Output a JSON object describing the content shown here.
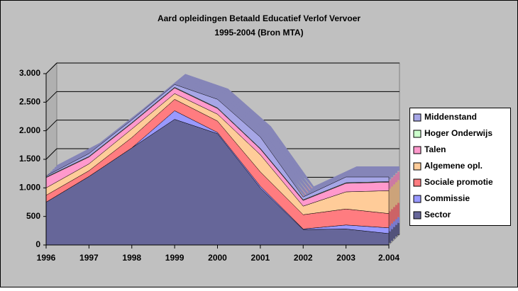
{
  "chart_data": {
    "type": "area3d",
    "title": "Aard opleidingen Betaald Educatief Verlof Vervoer",
    "subtitle": "1995-2004 (Bron MTA)",
    "categories": [
      "1996",
      "1997",
      "1998",
      "1999",
      "2000",
      "2001",
      "2002",
      "2003",
      "2.004"
    ],
    "series": [
      {
        "name": "Sector",
        "color": "#666699",
        "values": [
          750,
          1200,
          1700,
          2200,
          1950,
          1000,
          270,
          280,
          200
        ]
      },
      {
        "name": "Commissie",
        "color": "#9999ff",
        "values": [
          0,
          0,
          0,
          150,
          20,
          30,
          10,
          70,
          100
        ]
      },
      {
        "name": "Sociale promotie",
        "color": "#ff7c80",
        "values": [
          120,
          100,
          180,
          200,
          200,
          250,
          250,
          280,
          250
        ]
      },
      {
        "name": "Algemene opl.",
        "color": "#ffcc99",
        "values": [
          130,
          120,
          150,
          100,
          120,
          300,
          150,
          300,
          400
        ]
      },
      {
        "name": "Talen",
        "color": "#ff99cc",
        "values": [
          180,
          120,
          100,
          100,
          100,
          100,
          100,
          150,
          150
        ]
      },
      {
        "name": "Hoger Onderwijs",
        "color": "#ccffcc",
        "values": [
          10,
          10,
          10,
          10,
          10,
          10,
          10,
          10,
          10
        ]
      },
      {
        "name": "Middenstand",
        "color": "#a6a6e6",
        "values": [
          20,
          50,
          50,
          50,
          150,
          200,
          50,
          100,
          80
        ]
      }
    ],
    "ylim": [
      0,
      3000
    ],
    "yticks": [
      {
        "value": 0,
        "label": "0"
      },
      {
        "value": 500,
        "label": "500"
      },
      {
        "value": 1000,
        "label": "1.000"
      },
      {
        "value": 1500,
        "label": "1.500"
      },
      {
        "value": 2000,
        "label": "2.000"
      },
      {
        "value": 2500,
        "label": "2.500"
      },
      {
        "value": 3000,
        "label": "3.000"
      }
    ],
    "grid": true
  }
}
